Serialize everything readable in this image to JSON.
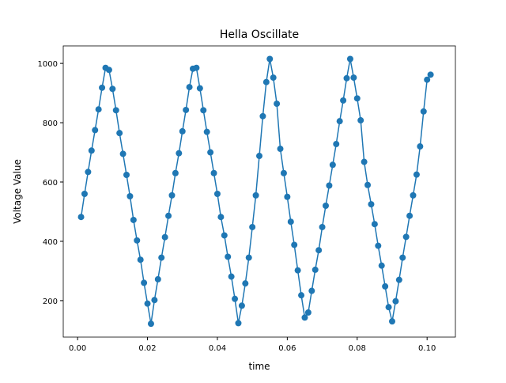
{
  "chart_data": {
    "type": "line",
    "title": "Hella Oscillate",
    "x_label": "time",
    "y_label": "Voltage Value",
    "color": "#1f77b4",
    "markers": true,
    "x": [
      0.001,
      0.002,
      0.003,
      0.004,
      0.005,
      0.006,
      0.007,
      0.008,
      0.009,
      0.01,
      0.011,
      0.012,
      0.013,
      0.014,
      0.015,
      0.016,
      0.017,
      0.018,
      0.019,
      0.02,
      0.021,
      0.022,
      0.023,
      0.024,
      0.025,
      0.026,
      0.027,
      0.028,
      0.029,
      0.03,
      0.031,
      0.032,
      0.033,
      0.034,
      0.035,
      0.036,
      0.037,
      0.038,
      0.039,
      0.04,
      0.041,
      0.042,
      0.043,
      0.044,
      0.045,
      0.046,
      0.047,
      0.048,
      0.049,
      0.05,
      0.051,
      0.052,
      0.053,
      0.054,
      0.055,
      0.056,
      0.057,
      0.058,
      0.059,
      0.06,
      0.061,
      0.062,
      0.063,
      0.064,
      0.065,
      0.066,
      0.067,
      0.068,
      0.069,
      0.07,
      0.071,
      0.072,
      0.073,
      0.074,
      0.075,
      0.076,
      0.077,
      0.078,
      0.079,
      0.08,
      0.081,
      0.082,
      0.083,
      0.084,
      0.085,
      0.086,
      0.087,
      0.088,
      0.089,
      0.09,
      0.091,
      0.092,
      0.093,
      0.094,
      0.095,
      0.096,
      0.097,
      0.098,
      0.099,
      0.1,
      0.101
    ],
    "values": [
      482,
      560,
      634,
      706,
      775,
      845,
      918,
      985,
      978,
      914,
      842,
      765,
      695,
      624,
      552,
      472,
      403,
      338,
      260,
      190,
      122,
      202,
      272,
      345,
      414,
      486,
      555,
      630,
      697,
      771,
      843,
      920,
      982,
      985,
      916,
      842,
      769,
      700,
      630,
      560,
      482,
      420,
      348,
      281,
      206,
      124,
      183,
      258,
      345,
      448,
      555,
      688,
      822,
      937,
      1015,
      952,
      864,
      712,
      630,
      550,
      466,
      388,
      302,
      218,
      143,
      160,
      233,
      304,
      370,
      448,
      520,
      588,
      658,
      728,
      805,
      875,
      950,
      1015,
      952,
      882,
      808,
      668,
      590,
      525,
      458,
      385,
      318,
      248,
      178,
      130,
      198,
      270,
      345,
      415,
      486,
      555,
      625,
      720,
      838,
      945,
      962
    ],
    "xlim": [
      -0.0041,
      0.1081
    ],
    "ylim": [
      77,
      1059
    ],
    "xticks": [
      {
        "value": 0,
        "label": "0.00"
      },
      {
        "value": 0.02,
        "label": "0.02"
      },
      {
        "value": 0.04,
        "label": "0.04"
      },
      {
        "value": 0.06,
        "label": "0.06"
      },
      {
        "value": 0.08,
        "label": "0.08"
      },
      {
        "value": 0.1,
        "label": "0.10"
      }
    ],
    "yticks": [
      200,
      400,
      600,
      800,
      1000
    ]
  }
}
